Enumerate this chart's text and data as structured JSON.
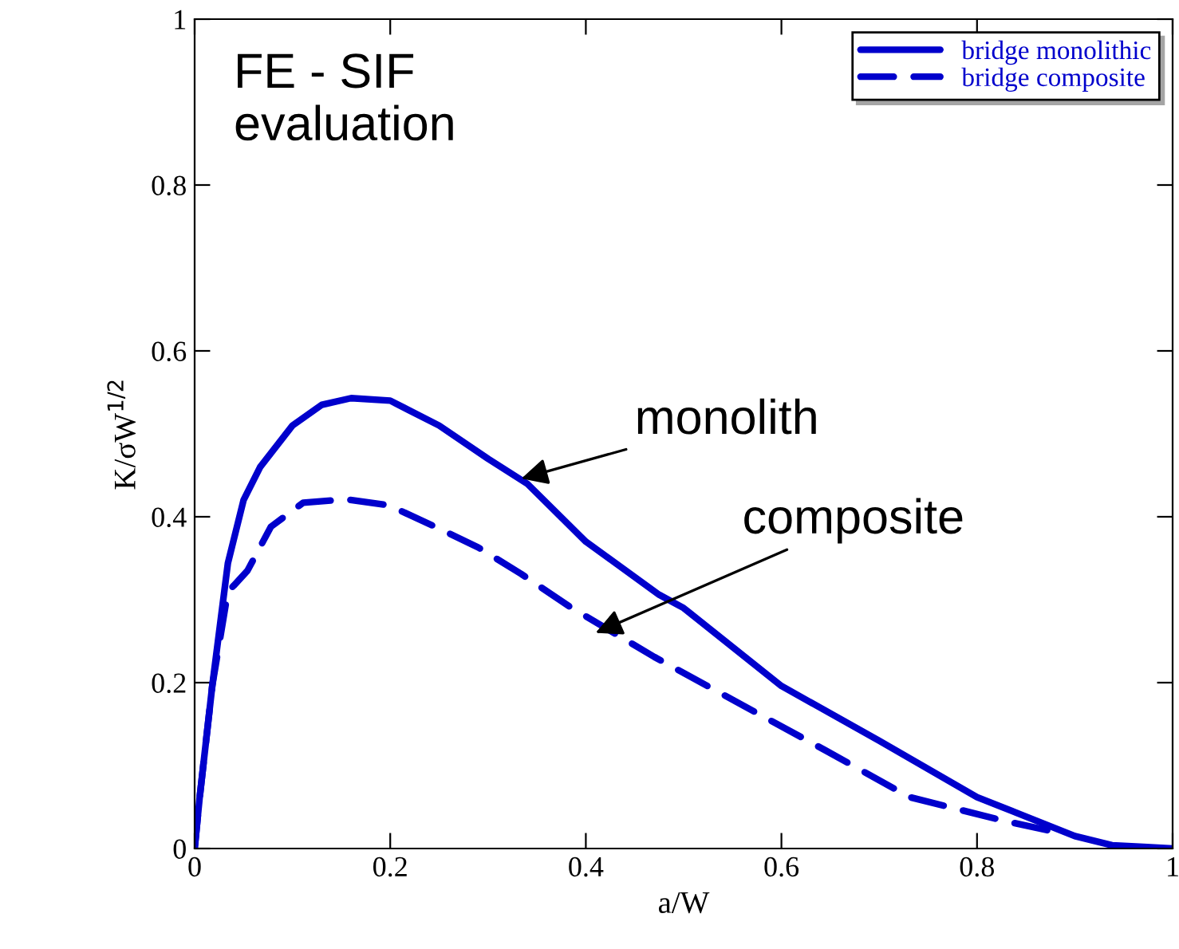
{
  "chart_data": {
    "type": "line",
    "xlabel": "a/W",
    "ylabel": "K/σW$^{1/2}$",
    "xlim": [
      0,
      1
    ],
    "ylim": [
      0,
      1
    ],
    "xticks": [
      0,
      0.2,
      0.4,
      0.6,
      0.8,
      1
    ],
    "yticks": [
      0,
      0.2,
      0.4,
      0.6,
      0.8,
      1
    ],
    "grid": false,
    "legend": "top right",
    "marker": "none",
    "series": [
      {
        "name": "bridge monolithic",
        "color": "#0000cc",
        "line_style": "solid",
        "x": [
          0,
          0.005,
          0.018,
          0.034,
          0.05,
          0.067,
          0.1,
          0.13,
          0.16,
          0.2,
          0.25,
          0.3,
          0.34,
          0.4,
          0.475,
          0.5,
          0.6,
          0.7,
          0.8,
          0.9,
          0.938,
          0.97,
          1.0
        ],
        "values": [
          0,
          0.06,
          0.196,
          0.344,
          0.42,
          0.46,
          0.51,
          0.535,
          0.543,
          0.54,
          0.51,
          0.47,
          0.44,
          0.37,
          0.306,
          0.29,
          0.196,
          0.13,
          0.062,
          0.015,
          0.004,
          0.002,
          0
        ]
      },
      {
        "name": "bridge composite",
        "color": "#0000cc",
        "line_style": "dashed",
        "x": [
          0,
          0.005,
          0.018,
          0.034,
          0.04,
          0.054,
          0.078,
          0.111,
          0.155,
          0.198,
          0.246,
          0.29,
          0.334,
          0.383,
          0.47,
          0.563,
          0.644,
          0.731,
          0.829,
          0.88
        ],
        "values": [
          0,
          0.06,
          0.196,
          0.31,
          0.317,
          0.335,
          0.388,
          0.417,
          0.421,
          0.414,
          0.388,
          0.363,
          0.331,
          0.292,
          0.231,
          0.171,
          0.119,
          0.062,
          0.033,
          0.02
        ]
      }
    ],
    "annotations": [
      "FE - SIF\nevaluation",
      {
        "text": "monolith",
        "x": 0.334,
        "y": 0.446
      },
      {
        "text": "composite",
        "x": 0.41,
        "y": 0.26
      }
    ]
  }
}
